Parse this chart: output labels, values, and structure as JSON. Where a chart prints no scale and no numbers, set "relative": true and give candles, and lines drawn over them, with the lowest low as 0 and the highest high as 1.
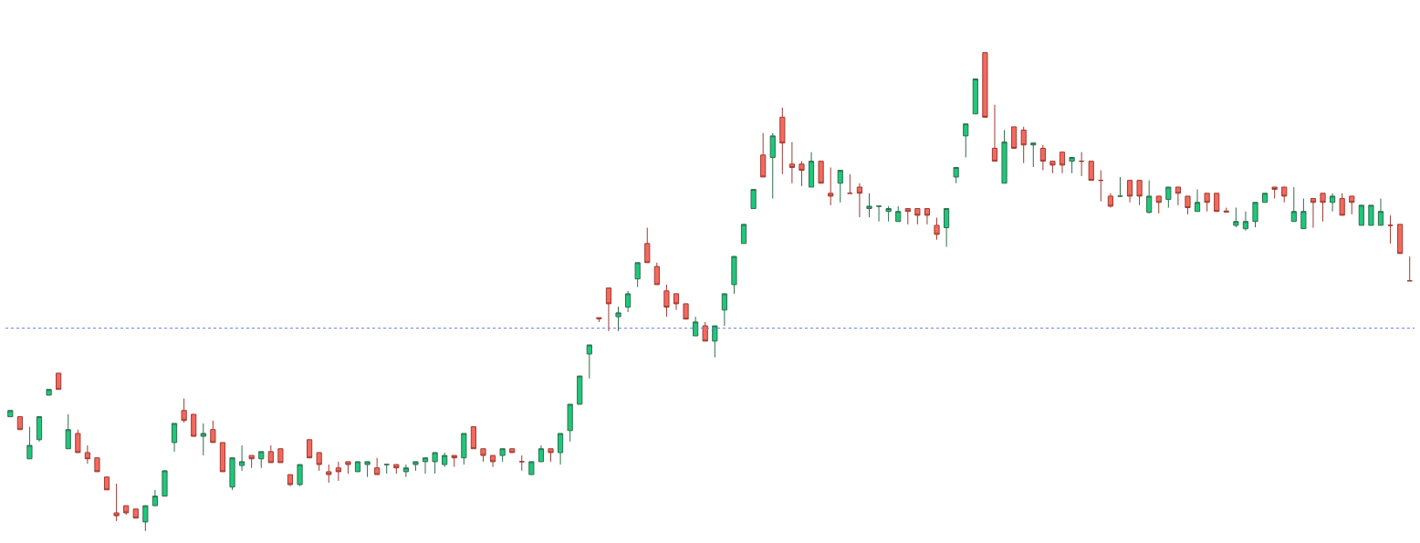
{
  "chart_data": {
    "type": "candlestick",
    "relative": true,
    "legend": false,
    "categories": [
      null,
      null,
      null,
      null,
      null,
      null,
      null,
      null,
      null,
      null,
      null,
      null,
      null,
      null,
      null,
      null,
      null,
      null,
      null,
      null,
      null,
      null,
      null,
      null,
      null,
      null,
      null,
      null,
      null,
      null,
      null,
      null,
      null,
      null,
      null,
      null,
      null,
      null,
      null,
      null,
      null,
      null,
      null,
      null,
      null,
      null,
      null,
      null,
      null,
      null,
      null,
      null,
      null,
      null,
      null,
      null,
      null,
      null,
      null,
      null,
      null,
      null,
      null,
      null,
      null,
      null,
      null,
      null,
      null,
      null,
      null,
      null,
      null,
      null,
      null,
      null,
      null,
      null,
      null,
      null,
      null,
      null,
      null,
      null,
      null,
      null,
      null,
      null,
      null,
      null,
      null,
      null,
      null,
      null,
      null,
      null,
      null,
      null,
      null,
      null,
      null,
      null,
      null,
      null,
      null,
      null,
      null,
      null,
      null,
      null,
      null,
      null,
      null,
      null,
      null,
      null,
      null,
      null,
      null,
      null,
      null,
      null,
      null,
      null,
      null,
      null,
      null,
      null,
      null,
      null,
      null,
      null,
      null,
      null,
      null,
      null,
      null,
      null,
      null,
      null,
      null,
      null,
      null,
      null,
      null,
      null
    ],
    "ohlc": [
      [
        0.239,
        0.252,
        0.239,
        0.252
      ],
      [
        0.239,
        0.239,
        0.212,
        0.212
      ],
      [
        0.151,
        0.218,
        0.151,
        0.179
      ],
      [
        0.191,
        0.239,
        0.187,
        0.239
      ],
      [
        0.284,
        0.296,
        0.284,
        0.296
      ],
      [
        0.33,
        0.33,
        0.296,
        0.296
      ],
      [
        0.172,
        0.244,
        0.172,
        0.212
      ],
      [
        0.204,
        0.212,
        0.164,
        0.164
      ],
      [
        0.164,
        0.179,
        0.141,
        0.151
      ],
      [
        0.153,
        0.153,
        0.124,
        0.124
      ],
      [
        0.113,
        0.113,
        0.086,
        0.086
      ],
      [
        0.038,
        0.099,
        0.021,
        0.032
      ],
      [
        0.053,
        0.053,
        0.034,
        0.038
      ],
      [
        0.046,
        0.046,
        0.027,
        0.027
      ],
      [
        0.019,
        0.053,
        0.0,
        0.053
      ],
      [
        0.053,
        0.086,
        0.053,
        0.073
      ],
      [
        0.073,
        0.126,
        0.073,
        0.126
      ],
      [
        0.185,
        0.225,
        0.166,
        0.225
      ],
      [
        0.252,
        0.277,
        0.227,
        0.231
      ],
      [
        0.244,
        0.244,
        0.198,
        0.198
      ],
      [
        0.198,
        0.225,
        0.158,
        0.204
      ],
      [
        0.212,
        0.231,
        0.185,
        0.185
      ],
      [
        0.185,
        0.185,
        0.124,
        0.124
      ],
      [
        0.092,
        0.153,
        0.086,
        0.153
      ],
      [
        0.137,
        0.179,
        0.126,
        0.145
      ],
      [
        0.158,
        0.158,
        0.132,
        0.151
      ],
      [
        0.151,
        0.166,
        0.132,
        0.166
      ],
      [
        0.166,
        0.179,
        0.143,
        0.143
      ],
      [
        0.172,
        0.172,
        0.143,
        0.143
      ],
      [
        0.118,
        0.118,
        0.094,
        0.097
      ],
      [
        0.097,
        0.139,
        0.094,
        0.139
      ],
      [
        0.191,
        0.191,
        0.153,
        0.153
      ],
      [
        0.164,
        0.164,
        0.126,
        0.139
      ],
      [
        0.124,
        0.139,
        0.101,
        0.118
      ],
      [
        0.132,
        0.145,
        0.105,
        0.124
      ],
      [
        0.145,
        0.145,
        0.12,
        0.139
      ],
      [
        0.124,
        0.145,
        0.124,
        0.145
      ],
      [
        0.139,
        0.145,
        0.113,
        0.145
      ],
      [
        0.132,
        0.153,
        0.118,
        0.118
      ],
      [
        0.139,
        0.139,
        0.12,
        0.139
      ],
      [
        0.139,
        0.139,
        0.12,
        0.132
      ],
      [
        0.124,
        0.139,
        0.113,
        0.132
      ],
      [
        0.139,
        0.145,
        0.126,
        0.145
      ],
      [
        0.145,
        0.153,
        0.12,
        0.153
      ],
      [
        0.145,
        0.164,
        0.12,
        0.164
      ],
      [
        0.139,
        0.164,
        0.134,
        0.158
      ],
      [
        0.158,
        0.158,
        0.134,
        0.153
      ],
      [
        0.153,
        0.204,
        0.139,
        0.204
      ],
      [
        0.218,
        0.218,
        0.172,
        0.172
      ],
      [
        0.172,
        0.172,
        0.145,
        0.158
      ],
      [
        0.158,
        0.158,
        0.134,
        0.145
      ],
      [
        0.158,
        0.172,
        0.145,
        0.172
      ],
      [
        0.172,
        0.172,
        0.164,
        0.164
      ],
      [
        0.145,
        0.158,
        0.126,
        0.145
      ],
      [
        0.118,
        0.145,
        0.118,
        0.145
      ],
      [
        0.145,
        0.179,
        0.145,
        0.172
      ],
      [
        0.172,
        0.172,
        0.145,
        0.164
      ],
      [
        0.164,
        0.204,
        0.139,
        0.204
      ],
      [
        0.21,
        0.265,
        0.187,
        0.265
      ],
      [
        0.265,
        0.324,
        0.265,
        0.324
      ],
      [
        0.37,
        0.389,
        0.319,
        0.389
      ],
      [
        0.446,
        0.446,
        0.437,
        0.444
      ],
      [
        0.508,
        0.508,
        0.418,
        0.475
      ],
      [
        0.448,
        0.469,
        0.418,
        0.456
      ],
      [
        0.468,
        0.502,
        0.458,
        0.496
      ],
      [
        0.527,
        0.561,
        0.51,
        0.561
      ],
      [
        0.601,
        0.634,
        0.561,
        0.561
      ],
      [
        0.553,
        0.561,
        0.515,
        0.515
      ],
      [
        0.502,
        0.515,
        0.448,
        0.468
      ],
      [
        0.496,
        0.496,
        0.462,
        0.475
      ],
      [
        0.475,
        0.475,
        0.443,
        0.443
      ],
      [
        0.408,
        0.448,
        0.408,
        0.437
      ],
      [
        0.429,
        0.437,
        0.397,
        0.397
      ],
      [
        0.397,
        0.429,
        0.363,
        0.429
      ],
      [
        0.462,
        0.496,
        0.429,
        0.496
      ],
      [
        0.515,
        0.574,
        0.496,
        0.574
      ],
      [
        0.601,
        0.641,
        0.601,
        0.641
      ],
      [
        0.674,
        0.714,
        0.674,
        0.714
      ],
      [
        0.786,
        0.832,
        0.74,
        0.74
      ],
      [
        0.781,
        0.832,
        0.695,
        0.826
      ],
      [
        0.865,
        0.885,
        0.746,
        0.811
      ],
      [
        0.767,
        0.813,
        0.727,
        0.76
      ],
      [
        0.767,
        0.773,
        0.721,
        0.754
      ],
      [
        0.719,
        0.792,
        0.719,
        0.773
      ],
      [
        0.773,
        0.773,
        0.727,
        0.727
      ],
      [
        0.706,
        0.76,
        0.681,
        0.7
      ],
      [
        0.727,
        0.754,
        0.687,
        0.754
      ],
      [
        0.706,
        0.746,
        0.706,
        0.706
      ],
      [
        0.719,
        0.727,
        0.656,
        0.706
      ],
      [
        0.674,
        0.706,
        0.656,
        0.679
      ],
      [
        0.679,
        0.679,
        0.647,
        0.679
      ],
      [
        0.668,
        0.679,
        0.647,
        0.674
      ],
      [
        0.647,
        0.679,
        0.647,
        0.668
      ],
      [
        0.674,
        0.674,
        0.641,
        0.668
      ],
      [
        0.674,
        0.674,
        0.641,
        0.66
      ],
      [
        0.674,
        0.674,
        0.641,
        0.66
      ],
      [
        0.639,
        0.655,
        0.609,
        0.62
      ],
      [
        0.634,
        0.674,
        0.594,
        0.674
      ],
      [
        0.74,
        0.76,
        0.727,
        0.76
      ],
      [
        0.826,
        0.851,
        0.781,
        0.851
      ],
      [
        0.872,
        0.945,
        0.872,
        0.945
      ],
      [
        1.0,
        1.0,
        0.865,
        0.865
      ],
      [
        0.8,
        0.891,
        0.773,
        0.773
      ],
      [
        0.727,
        0.838,
        0.727,
        0.813
      ],
      [
        0.845,
        0.845,
        0.8,
        0.8
      ],
      [
        0.838,
        0.845,
        0.769,
        0.807
      ],
      [
        0.807,
        0.811,
        0.761,
        0.811
      ],
      [
        0.8,
        0.807,
        0.754,
        0.773
      ],
      [
        0.773,
        0.773,
        0.748,
        0.765
      ],
      [
        0.792,
        0.792,
        0.748,
        0.765
      ],
      [
        0.773,
        0.781,
        0.748,
        0.781
      ],
      [
        0.773,
        0.792,
        0.742,
        0.773
      ],
      [
        0.773,
        0.773,
        0.733,
        0.733
      ],
      [
        0.733,
        0.754,
        0.689,
        0.733
      ],
      [
        0.7,
        0.706,
        0.676,
        0.679
      ],
      [
        0.7,
        0.74,
        0.7,
        0.7
      ],
      [
        0.733,
        0.733,
        0.687,
        0.7
      ],
      [
        0.733,
        0.733,
        0.681,
        0.7
      ],
      [
        0.666,
        0.733,
        0.664,
        0.7
      ],
      [
        0.7,
        0.7,
        0.664,
        0.687
      ],
      [
        0.693,
        0.719,
        0.676,
        0.719
      ],
      [
        0.719,
        0.719,
        0.681,
        0.706
      ],
      [
        0.7,
        0.7,
        0.662,
        0.676
      ],
      [
        0.668,
        0.714,
        0.668,
        0.687
      ],
      [
        0.706,
        0.706,
        0.668,
        0.687
      ],
      [
        0.706,
        0.706,
        0.668,
        0.668
      ],
      [
        0.669,
        0.676,
        0.667,
        0.667
      ],
      [
        0.639,
        0.676,
        0.635,
        0.647
      ],
      [
        0.632,
        0.668,
        0.628,
        0.647
      ],
      [
        0.647,
        0.687,
        0.635,
        0.687
      ],
      [
        0.687,
        0.706,
        0.687,
        0.706
      ],
      [
        0.719,
        0.719,
        0.695,
        0.714
      ],
      [
        0.719,
        0.719,
        0.687,
        0.7
      ],
      [
        0.647,
        0.719,
        0.647,
        0.668
      ],
      [
        0.632,
        0.695,
        0.632,
        0.668
      ],
      [
        0.695,
        0.695,
        0.634,
        0.687
      ],
      [
        0.706,
        0.706,
        0.647,
        0.687
      ],
      [
        0.687,
        0.706,
        0.668,
        0.7
      ],
      [
        0.695,
        0.706,
        0.66,
        0.66
      ],
      [
        0.7,
        0.7,
        0.662,
        0.687
      ],
      [
        0.639,
        0.681,
        0.639,
        0.681
      ],
      [
        0.639,
        0.681,
        0.639,
        0.681
      ],
      [
        0.639,
        0.695,
        0.639,
        0.668
      ],
      [
        0.639,
        0.66,
        0.601,
        0.639
      ],
      [
        0.641,
        0.641,
        0.58,
        0.58
      ],
      [
        0.523,
        0.574,
        0.523,
        0.523
      ]
    ],
    "ref_lines": [
      {
        "axis": "y",
        "value": 0.424,
        "color": "#6a7cf5",
        "line_style": "dotted"
      }
    ]
  }
}
